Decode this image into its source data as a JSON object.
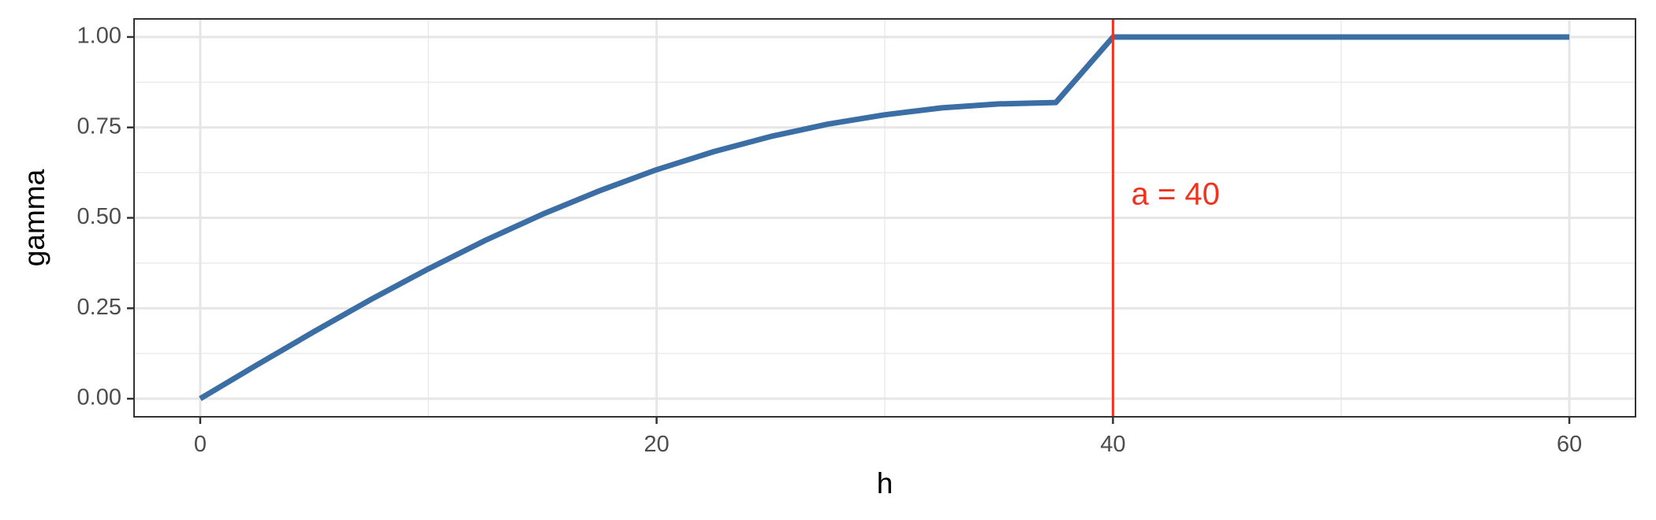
{
  "chart_data": {
    "type": "line",
    "title": "",
    "xlabel": "h",
    "ylabel": "gamma",
    "xlim": [
      -2.9,
      62.9
    ],
    "ylim": [
      -0.05,
      1.05
    ],
    "x_ticks": [
      0,
      20,
      40,
      60
    ],
    "x_tick_labels": [
      "0",
      "20",
      "40",
      "60"
    ],
    "x_minor_ticks": [
      10,
      30,
      50
    ],
    "y_ticks": [
      0,
      0.25,
      0.5,
      0.75,
      1
    ],
    "y_tick_labels": [
      "0.00",
      "0.25",
      "0.50",
      "0.75",
      "1.00"
    ],
    "y_minor_ticks": [
      0.125,
      0.375,
      0.625,
      0.875
    ],
    "grid": true,
    "legend": "none",
    "series": [
      {
        "x": [
          0,
          2.5,
          5,
          7.5,
          10,
          12.5,
          15,
          17.5,
          20,
          22.5,
          25,
          27.5,
          30,
          32.5,
          35,
          37.5,
          40,
          45,
          50,
          55,
          60
        ],
        "y": [
          0,
          0.094,
          0.186,
          0.275,
          0.359,
          0.438,
          0.51,
          0.575,
          0.633,
          0.683,
          0.725,
          0.759,
          0.785,
          0.804,
          0.815,
          0.819,
          1.0,
          1.0,
          1.0,
          1.0,
          1.0
        ],
        "color": "#3a6ea5"
      }
    ],
    "vline": {
      "x": 40,
      "color": "#f0331e",
      "label": "a = 40",
      "label_x": 40.8,
      "label_y": 0.56
    }
  }
}
